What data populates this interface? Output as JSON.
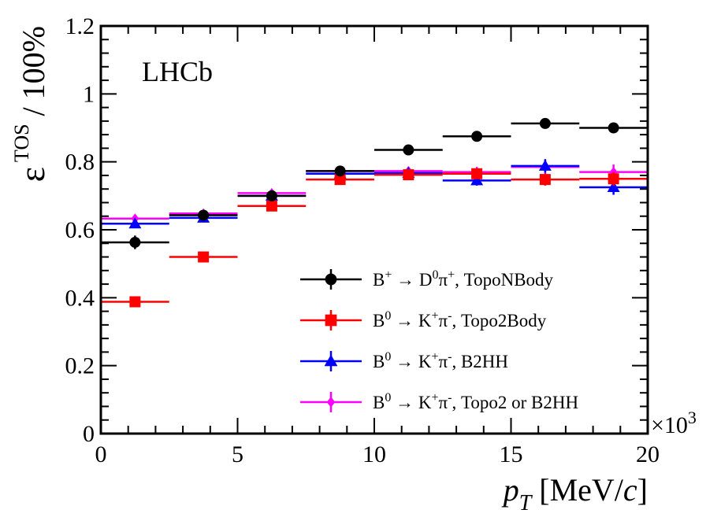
{
  "chart_data": {
    "type": "scatter",
    "title": "",
    "annotation": "LHCb",
    "xlabel": {
      "var": "p",
      "sub": "T",
      "unit": "[MeV/",
      "unit_var": "c",
      "unit_close": "]"
    },
    "ylabel": {
      "sym": "ε",
      "sup": "TOS",
      "rest": " / 100%"
    },
    "x_multiplier": {
      "base": "×10",
      "exp": "3"
    },
    "xlim": [
      0,
      20
    ],
    "ylim": [
      0,
      1.2
    ],
    "x_ticks": [
      {
        "value": 0,
        "label": "0"
      },
      {
        "value": 5,
        "label": "5"
      },
      {
        "value": 10,
        "label": "10"
      },
      {
        "value": 15,
        "label": "15"
      },
      {
        "value": 20,
        "label": "20"
      }
    ],
    "y_ticks": [
      {
        "value": 0,
        "label": "0"
      },
      {
        "value": 0.2,
        "label": "0.2"
      },
      {
        "value": 0.4,
        "label": "0.4"
      },
      {
        "value": 0.6,
        "label": "0.6"
      },
      {
        "value": 0.8,
        "label": "0.8"
      },
      {
        "value": 1.0,
        "label": "1"
      },
      {
        "value": 1.2,
        "label": "1.2"
      }
    ],
    "bins": [
      [
        0,
        2.5
      ],
      [
        2.5,
        5
      ],
      [
        5,
        7.5
      ],
      [
        7.5,
        10
      ],
      [
        10,
        12.5
      ],
      [
        12.5,
        15
      ],
      [
        15,
        17.5
      ],
      [
        17.5,
        20
      ]
    ],
    "x_centers": [
      1.25,
      3.75,
      6.25,
      8.75,
      11.25,
      13.75,
      16.25,
      18.75
    ],
    "series": [
      {
        "name": "topo2-or-b2hh",
        "legend": {
          "parts": [
            "B",
            "0",
            " → K",
            "+",
            "π",
            "-",
            ", Topo2 or B2HH"
          ]
        },
        "color": "#ff00ff",
        "marker": "diamond",
        "values": [
          0.633,
          0.648,
          0.708,
          0.773,
          0.773,
          0.77,
          0.785,
          0.77
        ],
        "errors": [
          0.008,
          0.008,
          0.008,
          0.01,
          0.012,
          0.015,
          0.02,
          0.022
        ]
      },
      {
        "name": "b2hh",
        "legend": {
          "parts": [
            "B",
            "0",
            " → K",
            "+",
            "π",
            "-",
            ", B2HH"
          ]
        },
        "color": "#0000ff",
        "marker": "triangle",
        "values": [
          0.618,
          0.635,
          0.7,
          0.765,
          0.767,
          0.745,
          0.788,
          0.725
        ],
        "errors": [
          0.008,
          0.008,
          0.008,
          0.01,
          0.012,
          0.015,
          0.02,
          0.022
        ]
      },
      {
        "name": "topo2body",
        "legend": {
          "parts": [
            "B",
            "0",
            " → K",
            "+",
            "π",
            "-",
            ", Topo2Body"
          ]
        },
        "color": "#ff0000",
        "marker": "square",
        "values": [
          0.388,
          0.52,
          0.67,
          0.748,
          0.762,
          0.765,
          0.748,
          0.75
        ],
        "errors": [
          0.008,
          0.008,
          0.008,
          0.01,
          0.012,
          0.015,
          0.018,
          0.02
        ]
      },
      {
        "name": "toponbody",
        "legend": {
          "parts": [
            "B",
            "+",
            " → D",
            "0",
            "π",
            "+",
            ", TopoNBody"
          ]
        },
        "color": "#000000",
        "marker": "circle",
        "values": [
          0.563,
          0.643,
          0.7,
          0.773,
          0.835,
          0.875,
          0.913,
          0.9
        ],
        "errors": [
          0.02,
          0.01,
          0.008,
          0.008,
          0.006,
          0.006,
          0.005,
          0.005
        ]
      }
    ],
    "legend_order": [
      "toponbody",
      "topo2body",
      "b2hh",
      "topo2-or-b2hh"
    ],
    "legend_position": "lower-right"
  }
}
